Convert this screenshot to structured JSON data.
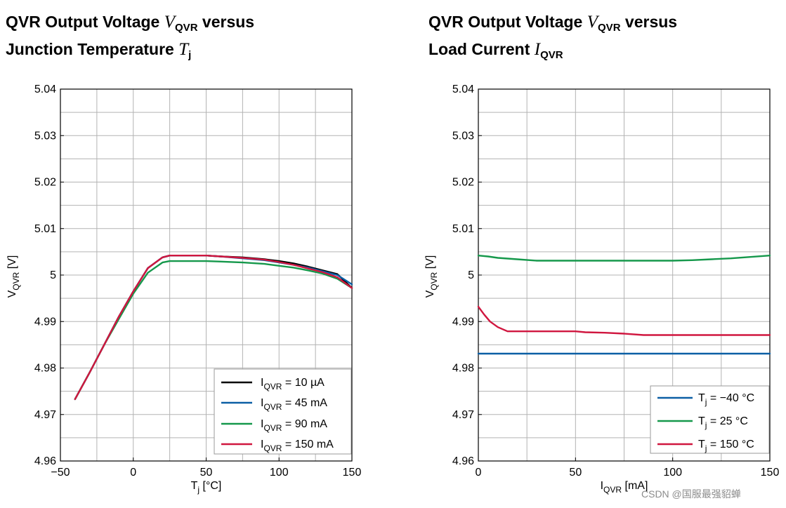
{
  "titles": {
    "left": {
      "line1_prefix": "QVR Output Voltage ",
      "var": "V",
      "sub": "QVR",
      "line1_suffix": " versus",
      "line2_prefix": "Junction Temperature ",
      "var2": "T",
      "sub2": "j"
    },
    "right": {
      "line1_prefix": "QVR Output Voltage ",
      "var": "V",
      "sub": "QVR",
      "line1_suffix": " versus",
      "line2_prefix": "Load Current ",
      "var2": "I",
      "sub2": "QVR"
    }
  },
  "watermark": "CSDN @国服最强貂蝉",
  "chart_data": [
    {
      "type": "line",
      "title": "QVR Output Voltage VQVR versus Junction Temperature Tj",
      "xlabel": {
        "main": "T",
        "sub": "j",
        "unit": " [°C]"
      },
      "ylabel": {
        "main": "V",
        "sub": "QVR",
        "unit": " [V]"
      },
      "xlim": [
        -50,
        150
      ],
      "ylim": [
        4.96,
        5.04
      ],
      "x_ticks": [
        -50,
        0,
        50,
        100,
        150
      ],
      "x_tick_labels": [
        "−50",
        "0",
        "50",
        "100",
        "150"
      ],
      "x_minor": 25,
      "y_ticks": [
        4.96,
        4.97,
        4.98,
        4.99,
        5.0,
        5.01,
        5.02,
        5.03,
        5.04
      ],
      "y_tick_labels": [
        "4.96",
        "4.97",
        "4.98",
        "4.99",
        "5",
        "5.01",
        "5.02",
        "5.03",
        "5.04"
      ],
      "y_minor": 0.005,
      "grid": true,
      "legend_position": "bottom-right",
      "series": [
        {
          "name_main": "I",
          "name_sub": "QVR",
          "name_rest": " = 10 µA",
          "color": "#000000",
          "x": [
            -40,
            -30,
            -20,
            -10,
            0,
            10,
            20,
            25,
            40,
            50,
            60,
            75,
            90,
            100,
            110,
            120,
            130,
            140,
            150
          ],
          "y": [
            4.9733,
            4.979,
            4.985,
            4.991,
            4.9965,
            5.0015,
            5.0038,
            5.0042,
            5.0042,
            5.0042,
            5.004,
            5.0038,
            5.0034,
            5.003,
            5.0025,
            5.0018,
            5.001,
            5.0002,
            4.9972
          ]
        },
        {
          "name_main": "I",
          "name_sub": "QVR",
          "name_rest": " = 45 mA",
          "color": "#0b5fa5",
          "x": [
            -40,
            -30,
            -20,
            -10,
            0,
            10,
            20,
            25,
            40,
            50,
            60,
            75,
            90,
            100,
            110,
            120,
            130,
            140,
            150
          ],
          "y": [
            4.9733,
            4.979,
            4.985,
            4.991,
            4.9965,
            5.0015,
            5.0038,
            5.0042,
            5.0042,
            5.0042,
            5.004,
            5.0036,
            5.0032,
            5.0027,
            5.0022,
            5.0016,
            5.0008,
            5.0,
            4.998
          ]
        },
        {
          "name_main": "I",
          "name_sub": "QVR",
          "name_rest": " = 90 mA",
          "color": "#15984b",
          "x": [
            -40,
            -30,
            -20,
            -10,
            0,
            10,
            20,
            25,
            40,
            50,
            60,
            75,
            90,
            100,
            110,
            120,
            130,
            140,
            150
          ],
          "y": [
            4.9733,
            4.979,
            4.985,
            4.9905,
            4.996,
            5.0005,
            5.0027,
            5.003,
            5.003,
            5.003,
            5.0029,
            5.0027,
            5.0024,
            5.002,
            5.0016,
            5.001,
            5.0003,
            4.9992,
            4.9972
          ]
        },
        {
          "name_main": "I",
          "name_sub": "QVR",
          "name_rest": " = 150 mA",
          "color": "#d0163f",
          "x": [
            -40,
            -30,
            -20,
            -10,
            0,
            10,
            20,
            25,
            40,
            50,
            60,
            75,
            90,
            100,
            110,
            120,
            130,
            140,
            150
          ],
          "y": [
            4.9733,
            4.979,
            4.985,
            4.991,
            4.9965,
            5.0015,
            5.0038,
            5.0042,
            5.0042,
            5.0042,
            5.004,
            5.0037,
            5.0033,
            5.0028,
            5.0022,
            5.0014,
            5.0006,
            4.9995,
            4.9972
          ]
        }
      ]
    },
    {
      "type": "line",
      "title": "QVR Output Voltage VQVR versus Load Current IQVR",
      "xlabel": {
        "main": "I",
        "sub": "QVR",
        "unit": " [mA]"
      },
      "ylabel": {
        "main": "V",
        "sub": "QVR",
        "unit": " [V]"
      },
      "xlim": [
        0,
        150
      ],
      "ylim": [
        4.96,
        5.04
      ],
      "x_ticks": [
        0,
        50,
        100,
        150
      ],
      "x_tick_labels": [
        "0",
        "50",
        "100",
        "150"
      ],
      "x_minor": 25,
      "y_ticks": [
        4.96,
        4.97,
        4.98,
        4.99,
        5.0,
        5.01,
        5.02,
        5.03,
        5.04
      ],
      "y_tick_labels": [
        "4.96",
        "4.97",
        "4.98",
        "4.99",
        "5",
        "5.01",
        "5.02",
        "5.03",
        "5.04"
      ],
      "y_minor": 0.005,
      "grid": true,
      "legend_position": "bottom-right",
      "series": [
        {
          "name_main": "T",
          "name_sub": "j",
          "name_rest": " = −40 °C",
          "color": "#0b5fa5",
          "x": [
            0,
            150
          ],
          "y": [
            4.9831,
            4.9831
          ]
        },
        {
          "name_main": "T",
          "name_sub": "j",
          "name_rest": " = 25 °C",
          "color": "#15984b",
          "x": [
            0,
            5,
            10,
            20,
            30,
            50,
            70,
            90,
            100,
            110,
            120,
            130,
            140,
            150
          ],
          "y": [
            5.0042,
            5.004,
            5.0037,
            5.0034,
            5.0031,
            5.0031,
            5.0031,
            5.0031,
            5.0031,
            5.0032,
            5.0034,
            5.0036,
            5.0039,
            5.0042
          ]
        },
        {
          "name_main": "T",
          "name_sub": "j",
          "name_rest": " = 150 °C",
          "color": "#d0163f",
          "x": [
            0,
            3,
            6,
            10,
            15,
            20,
            30,
            40,
            50,
            55,
            65,
            75,
            85,
            100,
            120,
            150
          ],
          "y": [
            4.9932,
            4.9915,
            4.99,
            4.9888,
            4.9879,
            4.9879,
            4.9879,
            4.9879,
            4.9879,
            4.9877,
            4.9876,
            4.9874,
            4.9871,
            4.9871,
            4.9871,
            4.9871
          ]
        }
      ]
    }
  ]
}
